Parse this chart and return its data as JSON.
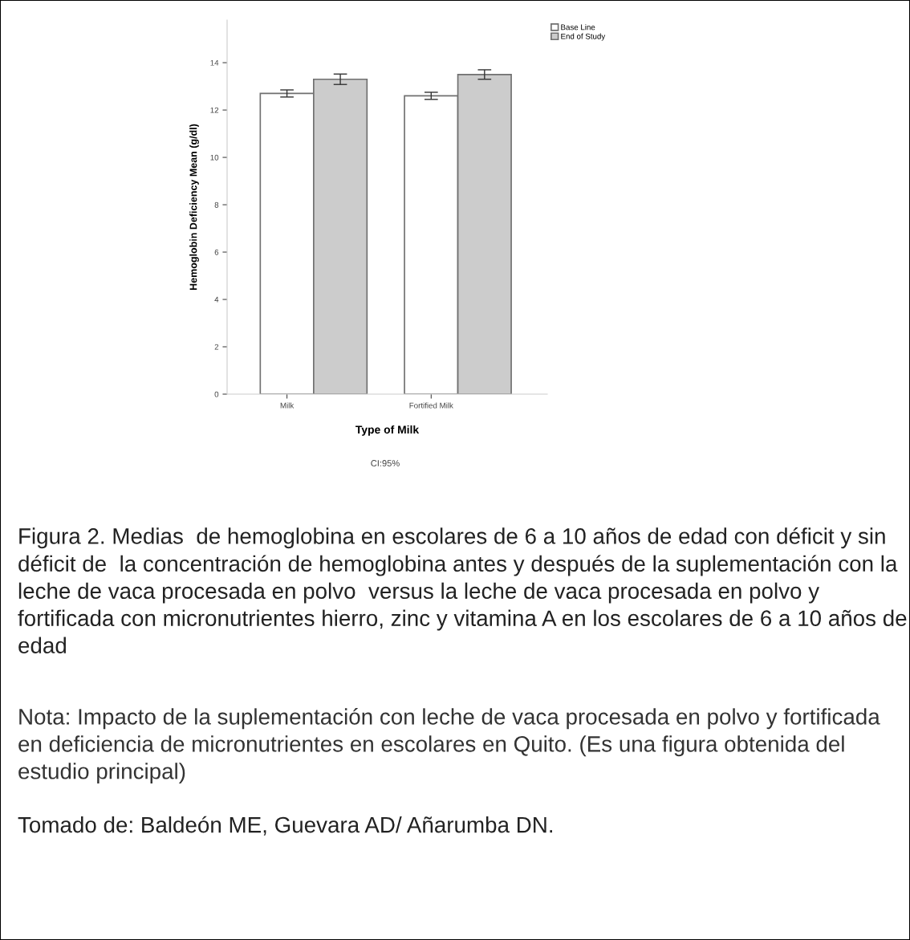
{
  "chart_data": {
    "type": "bar",
    "xlabel": "Type of Milk",
    "ylabel": "Hemoglobin Deficiency Mean (g/dl)",
    "categories": [
      "Milk",
      "Fortified Milk"
    ],
    "series": [
      {
        "name": "Base Line",
        "color": "#ffffff",
        "values": [
          12.7,
          12.6
        ],
        "errors": [
          0.15,
          0.15
        ]
      },
      {
        "name": "End of Study",
        "color": "#cccccc",
        "values": [
          13.3,
          13.5
        ],
        "errors": [
          0.22,
          0.2
        ]
      }
    ],
    "ylim": [
      0,
      15.8
    ],
    "yticks": [
      0,
      2,
      4,
      6,
      8,
      10,
      12,
      14
    ],
    "grid": false,
    "legend": "top right",
    "annotations": [
      "CI:95%",
      "Figura 2. Medias  de hemoglobina en escolares de 6 a 10 años de edad con déficit y sin déficit de  la concentración de hemoglobina antes y después de la suplementación con la leche de vaca procesada en polvo  versus la leche de vaca procesada en polvo y  fortificada con micronutrientes hierro, zinc y vitamina A en los escolares de 6 a 10 años de edad",
      "Nota: Impacto de la suplementación con leche de vaca procesada en polvo y fortificada en deficiencia de micronutrientes en escolares en Quito. (Es una figura obtenida del estudio principal)",
      "Tomado de: Baldeón ME, Guevara AD/ Añarumba DN."
    ]
  }
}
